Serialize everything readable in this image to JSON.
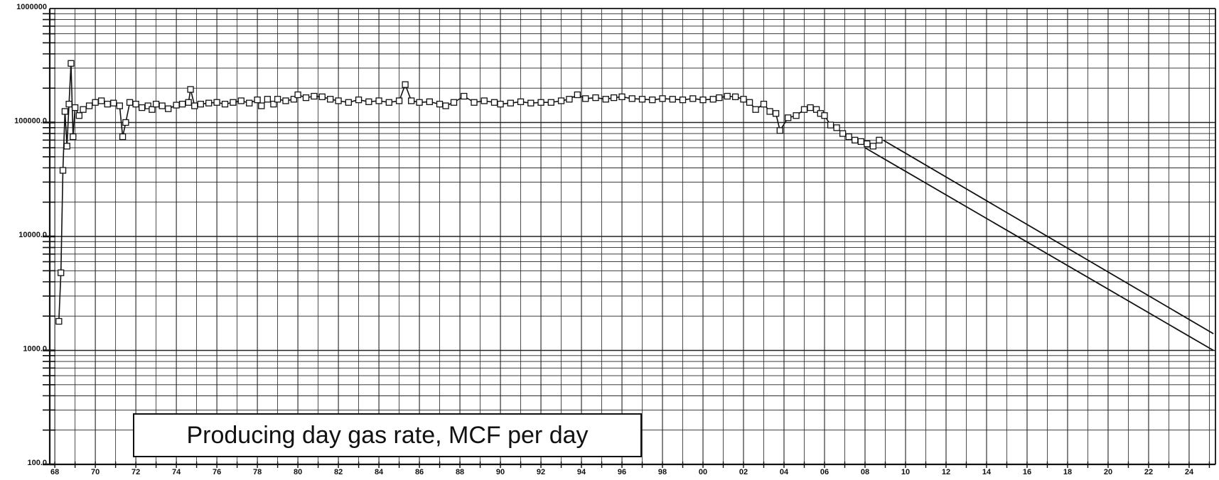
{
  "chart_data": {
    "type": "line",
    "yscale": "log",
    "ylim": [
      100,
      1000000
    ],
    "y_ticks": [
      {
        "value": 1000000,
        "label": "1000000"
      },
      {
        "value": 100000,
        "label": "100000.0"
      },
      {
        "value": 10000,
        "label": "10000.0"
      },
      {
        "value": 1000,
        "label": "1000.0"
      },
      {
        "value": 100,
        "label": "100.0"
      }
    ],
    "xlim": [
      1967.75,
      2025.3
    ],
    "x_ticks": [
      {
        "value": 1968,
        "label": "68"
      },
      {
        "value": 1970,
        "label": "70"
      },
      {
        "value": 1972,
        "label": "72"
      },
      {
        "value": 1974,
        "label": "74"
      },
      {
        "value": 1976,
        "label": "76"
      },
      {
        "value": 1978,
        "label": "78"
      },
      {
        "value": 1980,
        "label": "80"
      },
      {
        "value": 1982,
        "label": "82"
      },
      {
        "value": 1984,
        "label": "84"
      },
      {
        "value": 1986,
        "label": "86"
      },
      {
        "value": 1988,
        "label": "88"
      },
      {
        "value": 1990,
        "label": "90"
      },
      {
        "value": 1992,
        "label": "92"
      },
      {
        "value": 1994,
        "label": "94"
      },
      {
        "value": 1996,
        "label": "96"
      },
      {
        "value": 1998,
        "label": "98"
      },
      {
        "value": 2000,
        "label": "00"
      },
      {
        "value": 2002,
        "label": "02"
      },
      {
        "value": 2004,
        "label": "04"
      },
      {
        "value": 2006,
        "label": "06"
      },
      {
        "value": 2008,
        "label": "08"
      },
      {
        "value": 2010,
        "label": "10"
      },
      {
        "value": 2012,
        "label": "12"
      },
      {
        "value": 2014,
        "label": "14"
      },
      {
        "value": 2016,
        "label": "16"
      },
      {
        "value": 2018,
        "label": "18"
      },
      {
        "value": 2020,
        "label": "20"
      },
      {
        "value": 2022,
        "label": "22"
      },
      {
        "value": 2024,
        "label": "24"
      }
    ],
    "grid": true,
    "legend_position": "bottom-left",
    "legend_text": "Producing day gas rate, MCF per day",
    "series": [
      {
        "marker": "square",
        "x": [
          1968.2,
          1968.3,
          1968.4,
          1968.5,
          1968.6,
          1968.7,
          1968.8,
          1968.9,
          1969.0,
          1969.2,
          1969.4,
          1969.7,
          1970.0,
          1970.3,
          1970.6,
          1970.9,
          1971.2,
          1971.35,
          1971.5,
          1971.7,
          1972.0,
          1972.3,
          1972.6,
          1972.8,
          1973.0,
          1973.3,
          1973.6,
          1974.0,
          1974.3,
          1974.6,
          1974.7,
          1974.9,
          1975.2,
          1975.6,
          1976.0,
          1976.4,
          1976.8,
          1977.2,
          1977.6,
          1978.0,
          1978.2,
          1978.5,
          1978.8,
          1979.0,
          1979.4,
          1979.8,
          1980.0,
          1980.4,
          1980.8,
          1981.2,
          1981.6,
          1982.0,
          1982.5,
          1983.0,
          1983.5,
          1984.0,
          1984.5,
          1985.0,
          1985.3,
          1985.6,
          1986.0,
          1986.5,
          1987.0,
          1987.3,
          1987.7,
          1988.2,
          1988.7,
          1989.2,
          1989.7,
          1990.0,
          1990.5,
          1991.0,
          1991.5,
          1992.0,
          1992.5,
          1993.0,
          1993.4,
          1993.8,
          1994.2,
          1994.7,
          1995.2,
          1995.6,
          1996.0,
          1996.5,
          1997.0,
          1997.5,
          1998.0,
          1998.5,
          1999.0,
          1999.5,
          2000.0,
          2000.5,
          2000.8,
          2001.2,
          2001.6,
          2002.0,
          2002.3,
          2002.6,
          2003.0,
          2003.3,
          2003.6,
          2003.8,
          2004.2,
          2004.6,
          2005.0,
          2005.3,
          2005.6,
          2005.8,
          2006.0,
          2006.3,
          2006.6,
          2006.9,
          2007.2,
          2007.5,
          2007.8,
          2008.1,
          2008.4,
          2008.7
        ],
        "values": [
          1800,
          4800,
          38000,
          125000,
          62000,
          145000,
          330000,
          75000,
          135000,
          115000,
          130000,
          140000,
          150000,
          155000,
          145000,
          148000,
          140000,
          75000,
          100000,
          150000,
          145000,
          135000,
          140000,
          130000,
          145000,
          140000,
          132000,
          142000,
          145000,
          150000,
          195000,
          140000,
          145000,
          148000,
          150000,
          145000,
          150000,
          155000,
          148000,
          158000,
          140000,
          160000,
          145000,
          160000,
          155000,
          160000,
          175000,
          165000,
          170000,
          168000,
          160000,
          155000,
          150000,
          158000,
          152000,
          155000,
          150000,
          155000,
          215000,
          155000,
          150000,
          152000,
          145000,
          140000,
          150000,
          170000,
          150000,
          155000,
          150000,
          145000,
          148000,
          152000,
          148000,
          150000,
          150000,
          155000,
          160000,
          175000,
          162000,
          165000,
          160000,
          165000,
          168000,
          162000,
          160000,
          158000,
          162000,
          160000,
          158000,
          162000,
          158000,
          160000,
          165000,
          170000,
          168000,
          160000,
          150000,
          130000,
          145000,
          125000,
          120000,
          85000,
          110000,
          115000,
          130000,
          135000,
          130000,
          120000,
          115000,
          95000,
          90000,
          80000,
          75000,
          70000,
          68000,
          65000,
          62000,
          70000
        ]
      },
      {
        "x": [
          2008.9,
          2025.2
        ],
        "values": [
          70000,
          1400
        ]
      },
      {
        "x": [
          2008.0,
          2025.2
        ],
        "values": [
          60000,
          1000
        ]
      }
    ]
  }
}
